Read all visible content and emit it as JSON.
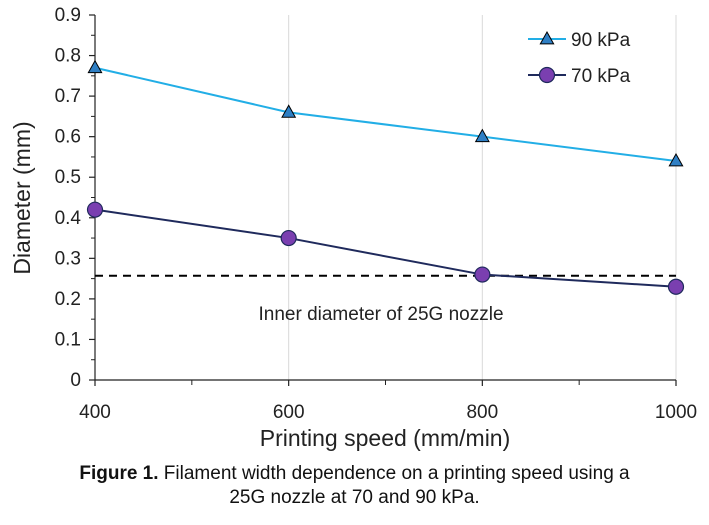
{
  "chart_data": {
    "type": "line",
    "x": [
      400,
      600,
      800,
      1000
    ],
    "xlim": [
      400,
      1000
    ],
    "ylim": [
      0,
      0.9
    ],
    "xticks": [
      "400",
      "600",
      "800",
      "1000"
    ],
    "yticks": [
      "0",
      "0.1",
      "0.2",
      "0.3",
      "0.4",
      "0.5",
      "0.6",
      "0.7",
      "0.8",
      "0.9"
    ],
    "xlabel": "Printing speed (mm/min)",
    "ylabel": "Diameter (mm)",
    "grid": "vertical",
    "legend_position": "top-right",
    "series": [
      {
        "name": "90 kPa",
        "values": [
          0.77,
          0.66,
          0.6,
          0.54
        ],
        "color": "#22aee6",
        "marker": "triangle",
        "marker_color": "#2f7fc4"
      },
      {
        "name": "70 kPa",
        "values": [
          0.42,
          0.35,
          0.26,
          0.23
        ],
        "color": "#1f2a5c",
        "marker": "circle",
        "marker_color": "#7a3fb0"
      }
    ],
    "reference_line": {
      "y": 0.257,
      "style": "dashed",
      "color": "#000000"
    },
    "annotation": "Inner diameter of 25G nozzle"
  },
  "caption": {
    "label": "Figure 1.",
    "text": " Filament width dependence on a printing speed using a",
    "text_line2": "25G nozzle at 70 and 90 kPa."
  }
}
